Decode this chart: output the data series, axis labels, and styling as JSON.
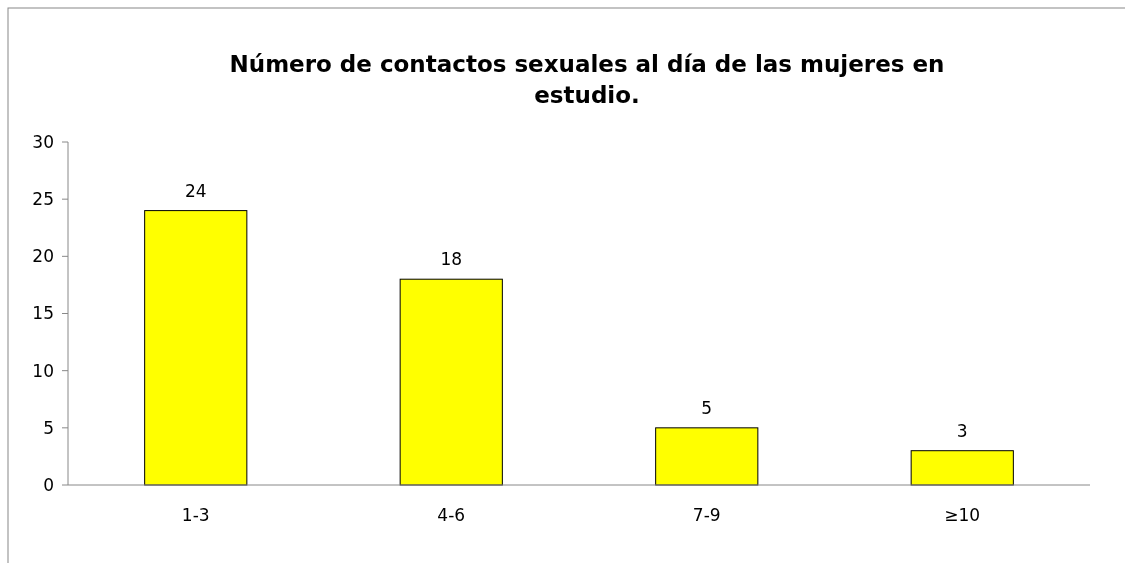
{
  "chart_data": {
    "type": "bar",
    "title": "Número de contactos sexuales al día de las mujeres en estudio.",
    "categories": [
      "1-3",
      "4-6",
      "7-9",
      "≥10"
    ],
    "values": [
      24,
      18,
      5,
      3
    ],
    "color": "#ffff00",
    "ylim": [
      0,
      30
    ],
    "yticks": [
      0,
      5,
      10,
      15,
      20,
      25,
      30
    ],
    "data_labels": true,
    "grid": false
  }
}
